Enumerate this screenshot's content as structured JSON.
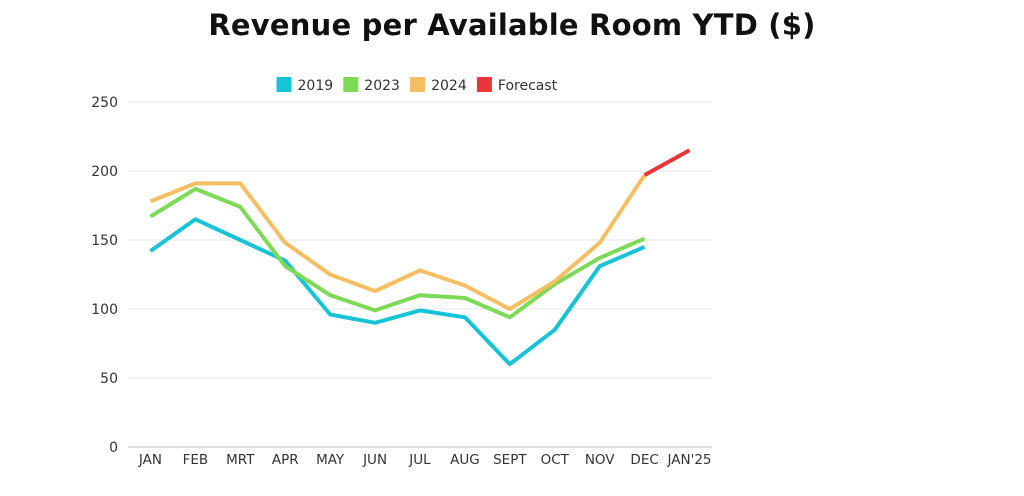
{
  "chart_data": {
    "type": "line",
    "title": "Revenue per Available Room YTD ($)",
    "xlabel": "",
    "ylabel": "",
    "categories": [
      "JAN",
      "FEB",
      "MRT",
      "APR",
      "MAY",
      "JUN",
      "JUL",
      "AUG",
      "SEPT",
      "OCT",
      "NOV",
      "DEC",
      "JAN'25"
    ],
    "ylim": [
      0,
      250
    ],
    "yticks": [
      0,
      50,
      100,
      150,
      200,
      250
    ],
    "grid": true,
    "legend_position": "top-center",
    "series": [
      {
        "name": "2019",
        "color": "#17c3d6",
        "values": [
          142,
          165,
          150,
          135,
          96,
          90,
          99,
          94,
          60,
          85,
          131,
          145,
          null
        ]
      },
      {
        "name": "2023",
        "color": "#7ed957",
        "values": [
          167,
          187,
          174,
          131,
          110,
          99,
          110,
          108,
          94,
          118,
          137,
          151,
          null
        ]
      },
      {
        "name": "2024",
        "color": "#f5be63",
        "values": [
          178,
          191,
          191,
          148,
          125,
          113,
          128,
          117,
          100,
          120,
          148,
          197,
          null
        ]
      },
      {
        "name": "Forecast",
        "color": "#e8343a",
        "values": [
          null,
          null,
          null,
          null,
          null,
          null,
          null,
          null,
          null,
          null,
          null,
          197,
          215
        ]
      }
    ]
  }
}
